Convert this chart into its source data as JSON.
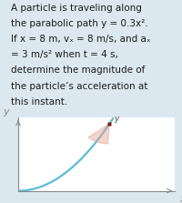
{
  "background_color": "#dce8f0",
  "text_lines": [
    "A particle is traveling along",
    "the parabolic path y = 0.3x².",
    "If x = 8 m, vₓ = 8 m/s, and aₓ",
    "= 3 m/s² when t = 4 s,",
    "determine the magnitude of",
    "the particle’s acceleration at",
    "this instant."
  ],
  "text_fontsize": 7.5,
  "text_color": "#1a1a1a",
  "parabola_color": "#5bbcd8",
  "parabola_lw": 1.6,
  "point_color": "#7a2020",
  "point_size": 28,
  "glow_color": "#e8a090",
  "axis_color": "#888888",
  "plot_bg": "#ffffff",
  "x_range": [
    0,
    6.0
  ],
  "y_range": [
    0,
    4.0
  ],
  "point_x": 3.5,
  "ylabel_text": "y",
  "xlabel_text": "x"
}
